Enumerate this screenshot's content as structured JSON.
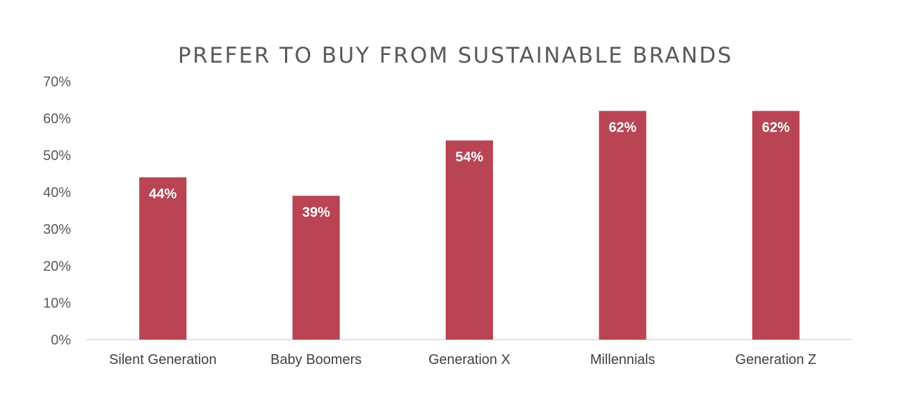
{
  "chart_data": {
    "type": "bar",
    "title": "PREFER TO BUY FROM SUSTAINABLE BRANDS",
    "xlabel": "",
    "ylabel": "",
    "categories": [
      "Silent Generation",
      "Baby Boomers",
      "Generation X",
      "Millennials",
      "Generation Z"
    ],
    "values": [
      44,
      39,
      54,
      62,
      62
    ],
    "data_labels": [
      "44%",
      "39%",
      "54%",
      "62%",
      "62%"
    ],
    "ylim": [
      0,
      70
    ],
    "yticks": [
      0,
      10,
      20,
      30,
      40,
      50,
      60,
      70
    ],
    "ytick_labels": [
      "0%",
      "10%",
      "20%",
      "30%",
      "40%",
      "50%",
      "60%",
      "70%"
    ],
    "grid": false,
    "legend": "none",
    "bar_color": "#b94454"
  }
}
